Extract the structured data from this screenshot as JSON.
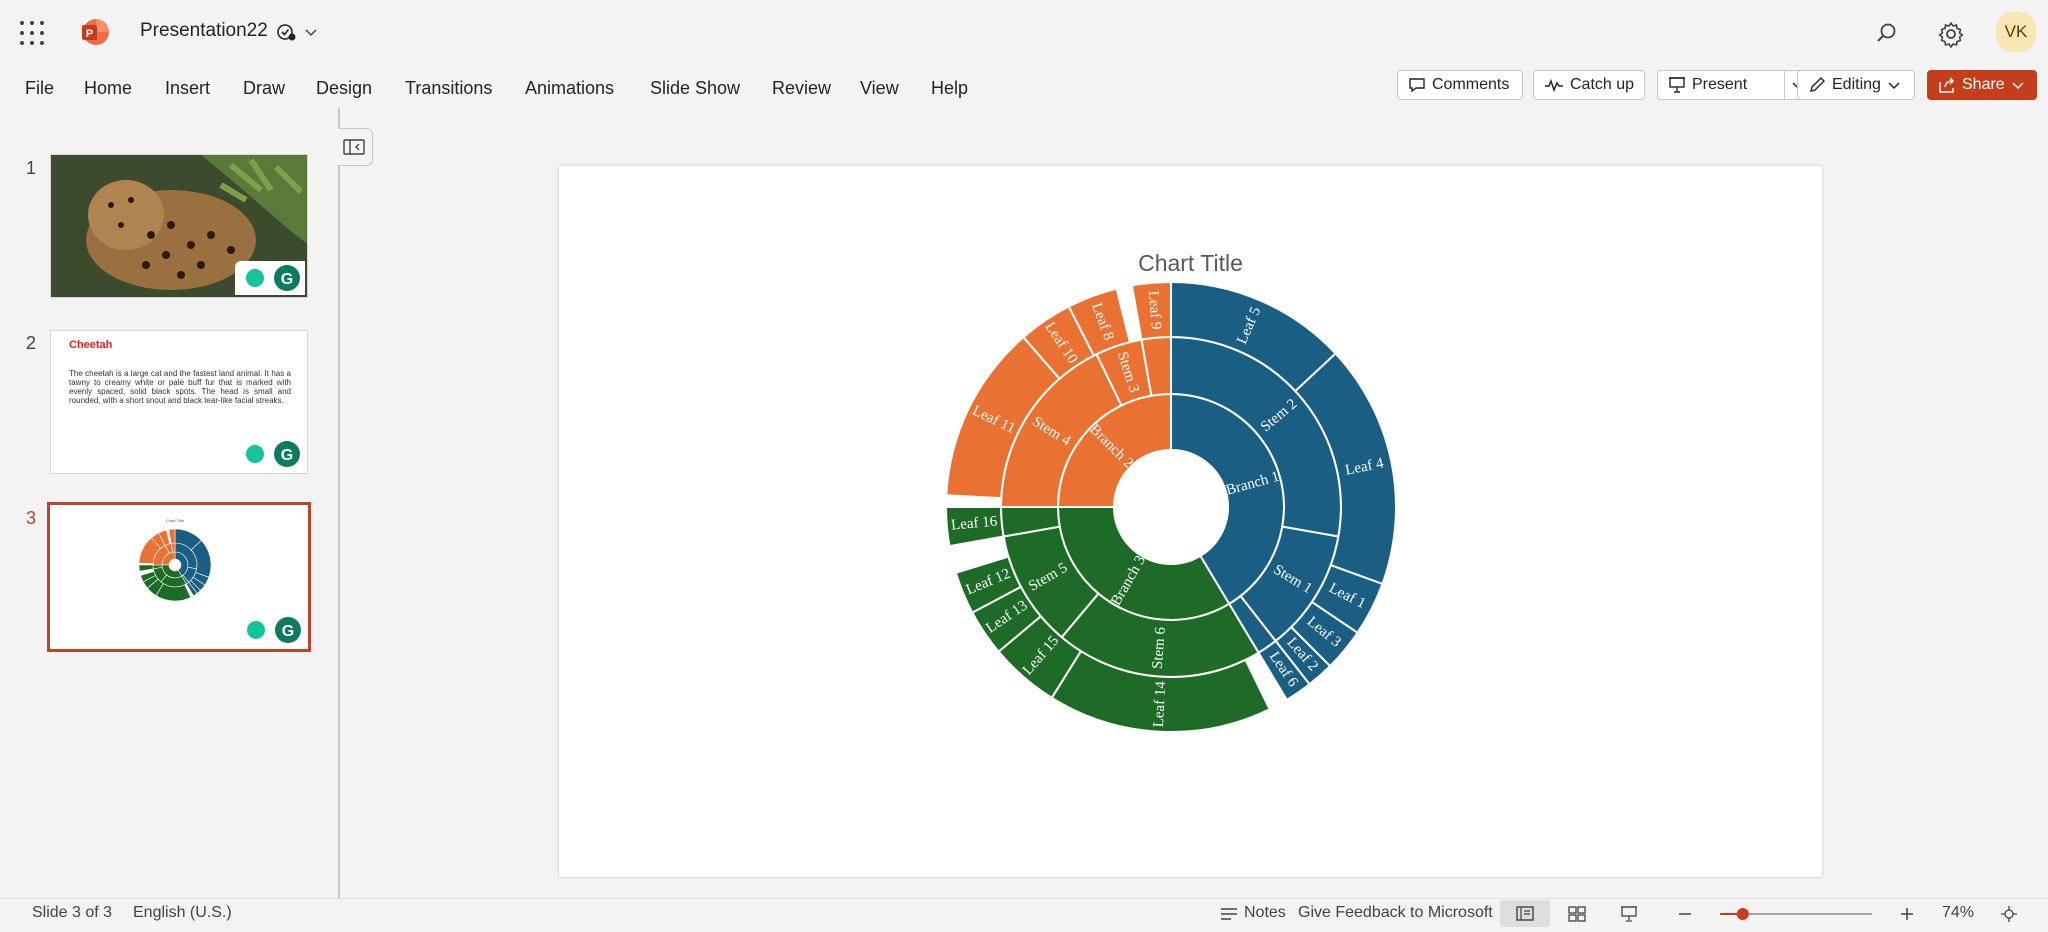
{
  "app": {
    "document_title": "Presentation22",
    "avatar_initials": "VK",
    "brand_color": "#c43e1c"
  },
  "menu": [
    {
      "label": "File"
    },
    {
      "label": "Home"
    },
    {
      "label": "Insert"
    },
    {
      "label": "Draw"
    },
    {
      "label": "Design"
    },
    {
      "label": "Transitions"
    },
    {
      "label": "Animations"
    },
    {
      "label": "Slide Show"
    },
    {
      "label": "Review"
    },
    {
      "label": "View"
    },
    {
      "label": "Help"
    }
  ],
  "actions": {
    "comments": "Comments",
    "catch_up": "Catch up",
    "present": "Present",
    "editing": "Editing",
    "share": "Share"
  },
  "thumbnails": [
    {
      "number": "1",
      "icon": "leopard-photo"
    },
    {
      "number": "2",
      "heading": "Cheetah",
      "body": "The cheetah is a large cat and the fastest land animal. It has a tawny to creamy white or pale buff fur that is marked with evenly spaced, solid black spots. The head is small and rounded, with a short snout and black tear-like facial streaks."
    },
    {
      "number": "3",
      "selected": true
    }
  ],
  "chart_data": {
    "type": "sunburst",
    "title": "Chart Title",
    "colors": {
      "Branch 1": "#1b5e84",
      "Branch 2": "#e97132",
      "Branch 3": "#1e6b27"
    },
    "rings": {
      "branches": [
        {
          "label": "Branch 1",
          "color": "#1b5e84",
          "start": 0,
          "end": 149
        },
        {
          "label": "Branch 2",
          "color": "#e97132",
          "start": 270,
          "end": 360
        },
        {
          "label": "Branch 3",
          "color": "#1e6b27",
          "start": 149,
          "end": 270
        }
      ],
      "stems": [
        {
          "label": "Stem 2",
          "color": "#1b5e84",
          "start": 0,
          "end": 100
        },
        {
          "label": "Stem 1",
          "color": "#1b5e84",
          "start": 100,
          "end": 142
        },
        {
          "label": "",
          "color": "#1b5e84",
          "start": 142,
          "end": 149
        },
        {
          "label": "Stem 6",
          "color": "#1e6b27",
          "start": 149,
          "end": 220
        },
        {
          "label": "Stem 5",
          "color": "#1e6b27",
          "start": 220,
          "end": 260
        },
        {
          "label": "",
          "color": "#1e6b27",
          "start": 260,
          "end": 270
        },
        {
          "label": "Stem 4",
          "color": "#e97132",
          "start": 270,
          "end": 334
        },
        {
          "label": "Stem 3",
          "color": "#e97132",
          "start": 334,
          "end": 350
        },
        {
          "label": "",
          "color": "#e97132",
          "start": 350,
          "end": 360
        }
      ],
      "leaves": [
        {
          "label": "Leaf 5",
          "color": "#1b5e84",
          "start": 0,
          "end": 47
        },
        {
          "label": "Leaf 4",
          "color": "#1b5e84",
          "start": 47,
          "end": 110
        },
        {
          "label": "Leaf 1",
          "color": "#1b5e84",
          "start": 110,
          "end": 124
        },
        {
          "label": "Leaf 3",
          "color": "#1b5e84",
          "start": 124,
          "end": 135
        },
        {
          "label": "Leaf 2",
          "color": "#1b5e84",
          "start": 135,
          "end": 142
        },
        {
          "label": "Leaf 6",
          "color": "#1b5e84",
          "start": 142,
          "end": 149
        },
        {
          "label": "Leaf 14",
          "color": "#1e6b27",
          "start": 154,
          "end": 212
        },
        {
          "label": "Leaf 15",
          "color": "#1e6b27",
          "start": 212,
          "end": 230
        },
        {
          "label": "Leaf 13",
          "color": "#1e6b27",
          "start": 230,
          "end": 242
        },
        {
          "label": "Leaf 12",
          "color": "#1e6b27",
          "start": 242,
          "end": 253
        },
        {
          "label": "Leaf 16",
          "color": "#1e6b27",
          "start": 260,
          "end": 270
        },
        {
          "label": "Leaf 11",
          "color": "#e97132",
          "start": 273,
          "end": 319
        },
        {
          "label": "Leaf 10",
          "color": "#e97132",
          "start": 319,
          "end": 333
        },
        {
          "label": "Leaf 8",
          "color": "#e97132",
          "start": 333,
          "end": 346
        },
        {
          "label": "Leaf 9",
          "color": "#e97132",
          "start": 350,
          "end": 360
        }
      ]
    }
  },
  "status": {
    "slide_info": "Slide 3 of 3",
    "language": "English (U.S.)",
    "notes": "Notes",
    "feedback": "Give Feedback to Microsoft",
    "zoom_percent": "74%",
    "zoom_level": 0.15
  }
}
